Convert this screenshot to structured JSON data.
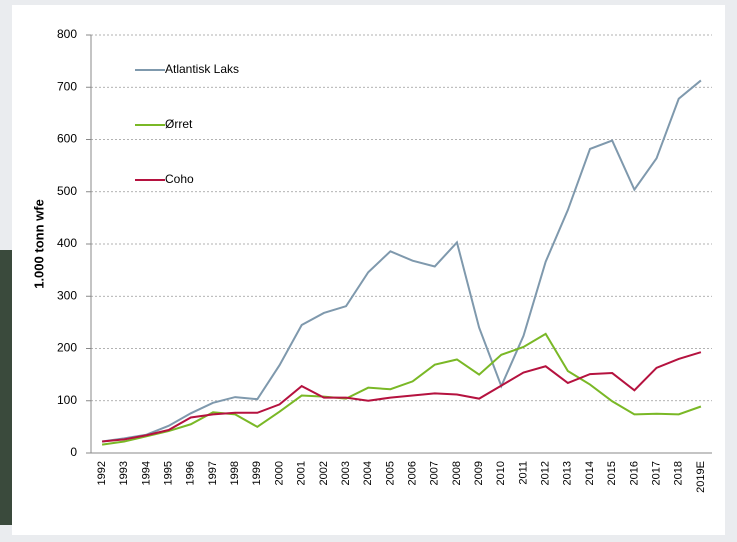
{
  "chart_data": {
    "type": "line",
    "y_label": "1.000 tonn  wfe",
    "categories": [
      "1992",
      "1993",
      "1994",
      "1995",
      "1996",
      "1997",
      "1998",
      "1999",
      "2000",
      "2001",
      "2002",
      "2003",
      "2004",
      "2005",
      "2006",
      "2007",
      "2008",
      "2009",
      "2010",
      "2011",
      "2012",
      "2013",
      "2014",
      "2015",
      "2016",
      "2017",
      "2018",
      "2019E"
    ],
    "series": [
      {
        "name": "Atlantisk Laks",
        "color": "#7f99ad",
        "values": [
          22,
          28,
          35,
          52,
          76,
          96,
          107,
          103,
          168,
          245,
          268,
          281,
          346,
          386,
          368,
          357,
          403,
          240,
          128,
          224,
          366,
          465,
          582,
          598,
          504,
          564,
          678,
          713
        ]
      },
      {
        "name": "Ørret",
        "color": "#7ab826",
        "values": [
          16,
          22,
          32,
          42,
          55,
          78,
          74,
          50,
          79,
          110,
          108,
          104,
          125,
          122,
          137,
          169,
          179,
          150,
          188,
          203,
          228,
          157,
          131,
          99,
          74,
          75,
          74,
          89
        ]
      },
      {
        "name": "Coho",
        "color": "#b5123f",
        "values": [
          22,
          26,
          34,
          44,
          68,
          74,
          77,
          77,
          93,
          128,
          106,
          106,
          100,
          106,
          110,
          114,
          112,
          104,
          129,
          154,
          166,
          134,
          151,
          153,
          120,
          163,
          180,
          193
        ]
      }
    ],
    "ylim": [
      0,
      800
    ],
    "yticks": [
      0,
      100,
      200,
      300,
      400,
      500,
      600,
      700,
      800
    ],
    "grid": true
  }
}
